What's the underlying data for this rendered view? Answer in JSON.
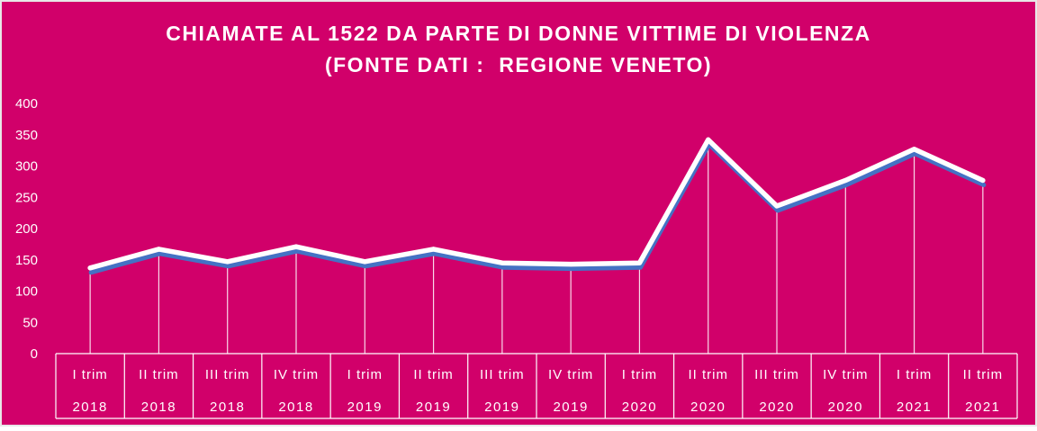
{
  "colors": {
    "background": "#d1006a",
    "frame": "#e8e8e8",
    "line_main": "#ffffff",
    "line_shadow": "#4472c4",
    "drop_line": "#ffffff",
    "text": "#ffffff"
  },
  "chart_data": {
    "type": "line",
    "title": "CHIAMATE AL 1522 DA PARTE DI DONNE VITTIME DI VIOLENZA",
    "subtitle": "(FONTE DATI :  REGIONE VENETO)",
    "xlabel": "",
    "ylabel": "",
    "ylim": [
      0,
      400
    ],
    "yticks": [
      "0",
      "50",
      "100",
      "150",
      "200",
      "250",
      "300",
      "350",
      "400"
    ],
    "grid": false,
    "legend": "none",
    "drop_lines": true,
    "categories": [
      {
        "quarter": "I trim",
        "year": "2018"
      },
      {
        "quarter": "II trim",
        "year": "2018"
      },
      {
        "quarter": "III trim",
        "year": "2018"
      },
      {
        "quarter": "IV trim",
        "year": "2018"
      },
      {
        "quarter": "I trim",
        "year": "2019"
      },
      {
        "quarter": "II trim",
        "year": "2019"
      },
      {
        "quarter": "III trim",
        "year": "2019"
      },
      {
        "quarter": "IV trim",
        "year": "2019"
      },
      {
        "quarter": "I trim",
        "year": "2020"
      },
      {
        "quarter": "II trim",
        "year": "2020"
      },
      {
        "quarter": "III trim",
        "year": "2020"
      },
      {
        "quarter": "IV trim",
        "year": "2020"
      },
      {
        "quarter": "I trim",
        "year": "2021"
      },
      {
        "quarter": "II trim",
        "year": "2021"
      }
    ],
    "series": [
      {
        "values": [
          137,
          167,
          147,
          171,
          147,
          167,
          145,
          143,
          145,
          342,
          236,
          277,
          327,
          277
        ]
      }
    ]
  }
}
